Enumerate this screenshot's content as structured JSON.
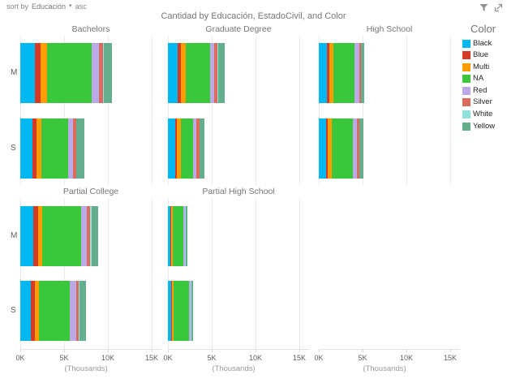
{
  "header": {
    "sort_by_label": "sort by",
    "sort_field": "Educación",
    "sort_caret": "▾",
    "sort_direction": "asc"
  },
  "title": "Cantidad by Educación, EstadoCivil, and Color",
  "chart_data": {
    "type": "bar",
    "variant": "horizontal-stacked-small-multiples",
    "title": "Cantidad by Educación, EstadoCivil, and Color",
    "legend_title": "Color",
    "legend_position": "right",
    "grid": true,
    "categories": [
      "M",
      "S"
    ],
    "series_names": [
      "Black",
      "Blue",
      "Multi",
      "NA",
      "Red",
      "Silver",
      "White",
      "Yellow"
    ],
    "series_colors": [
      "#00B8F1",
      "#D53A26",
      "#FF9D00",
      "#3BC73B",
      "#BCA9E8",
      "#DB6B5C",
      "#90E0DB",
      "#64AD8D"
    ],
    "unit": "thousands",
    "x_axis": {
      "tick_labels": [
        "0K",
        "5K",
        "10K",
        "15K"
      ],
      "tick_values_thousands": [
        0,
        5,
        10,
        15
      ],
      "range_thousands": [
        0,
        15
      ],
      "unit_label": "(Thousands)"
    },
    "panels": [
      {
        "title": "Bachelors",
        "row": 0,
        "col": 0,
        "values_thousands": {
          "M": [
            1.7,
            0.62,
            0.7,
            5.1,
            0.83,
            0.5,
            0.05,
            0.96
          ],
          "S": [
            1.35,
            0.46,
            0.58,
            3.1,
            0.55,
            0.34,
            0.05,
            0.9
          ]
        }
      },
      {
        "title": "Graduate Degree",
        "row": 0,
        "col": 1,
        "values_thousands": {
          "M": [
            1.1,
            0.37,
            0.56,
            2.8,
            0.47,
            0.37,
            0.03,
            0.75
          ],
          "S": [
            0.8,
            0.25,
            0.44,
            1.42,
            0.37,
            0.3,
            0.03,
            0.6
          ]
        }
      },
      {
        "title": "High School",
        "row": 0,
        "col": 2,
        "values_thousands": {
          "M": [
            0.93,
            0.28,
            0.46,
            2.4,
            0.56,
            0.15,
            0.03,
            0.4
          ],
          "S": [
            0.8,
            0.25,
            0.4,
            2.4,
            0.55,
            0.25,
            0.03,
            0.45
          ]
        }
      },
      {
        "title": "Partial College",
        "row": 1,
        "col": 0,
        "values_thousands": {
          "M": [
            1.45,
            0.55,
            0.52,
            4.4,
            0.67,
            0.4,
            0.15,
            0.78
          ],
          "S": [
            1.2,
            0.46,
            0.46,
            3.55,
            0.73,
            0.3,
            0.08,
            0.77
          ]
        }
      },
      {
        "title": "Partial High School",
        "row": 1,
        "col": 1,
        "values_thousands": {
          "M": [
            0.25,
            0.12,
            0.18,
            1.2,
            0.18,
            0.06,
            0.02,
            0.2
          ],
          "S": [
            0.4,
            0.1,
            0.15,
            1.75,
            0.18,
            0.06,
            0.02,
            0.2
          ]
        }
      }
    ]
  }
}
